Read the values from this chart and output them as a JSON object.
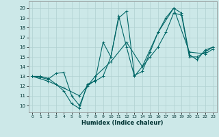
{
  "xlabel": "Humidex (Indice chaleur)",
  "xlim": [
    -0.5,
    23.5
  ],
  "ylim": [
    9.3,
    20.7
  ],
  "yticks": [
    10,
    11,
    12,
    13,
    14,
    15,
    16,
    17,
    18,
    19,
    20
  ],
  "xticks": [
    0,
    1,
    2,
    3,
    4,
    5,
    6,
    7,
    8,
    9,
    10,
    11,
    12,
    13,
    14,
    15,
    16,
    17,
    18,
    19,
    20,
    21,
    22,
    23
  ],
  "background_color": "#cce8e8",
  "grid_color": "#b0d0d0",
  "line_color": "#006666",
  "lines": [
    {
      "x": [
        0,
        1,
        2,
        3,
        4,
        5,
        6,
        7,
        8,
        9,
        10,
        11,
        12,
        13,
        14,
        15,
        16,
        17,
        18,
        19,
        20,
        21,
        22,
        23
      ],
      "y": [
        13,
        13,
        12.8,
        12.2,
        11.5,
        10.2,
        9.7,
        12.2,
        12.5,
        13.0,
        15.0,
        19.0,
        19.7,
        13.1,
        13.5,
        15.5,
        17.5,
        19.0,
        20.0,
        19.5,
        15.2,
        14.7,
        15.7,
        16.0
      ]
    },
    {
      "x": [
        0,
        1,
        2,
        3,
        4,
        5,
        6,
        7,
        8,
        9,
        10,
        11,
        12,
        13,
        14,
        15,
        16,
        17,
        18,
        19,
        20,
        21,
        22,
        23
      ],
      "y": [
        13,
        12.9,
        12.7,
        13.3,
        13.4,
        11.0,
        10.0,
        12.0,
        12.6,
        16.5,
        15.0,
        19.2,
        16.0,
        13.0,
        14.0,
        15.0,
        16.0,
        17.5,
        19.5,
        19.3,
        15.0,
        15.0,
        15.5,
        16.0
      ]
    },
    {
      "x": [
        0,
        2,
        4,
        6,
        8,
        10,
        12,
        14,
        16,
        18,
        20,
        22,
        23
      ],
      "y": [
        13,
        12.5,
        11.8,
        11.0,
        13.0,
        14.5,
        16.5,
        14.0,
        17.5,
        20.0,
        15.5,
        15.3,
        15.8
      ]
    }
  ],
  "xlabel_fontsize": 6.0,
  "tick_fontsize": 4.5
}
